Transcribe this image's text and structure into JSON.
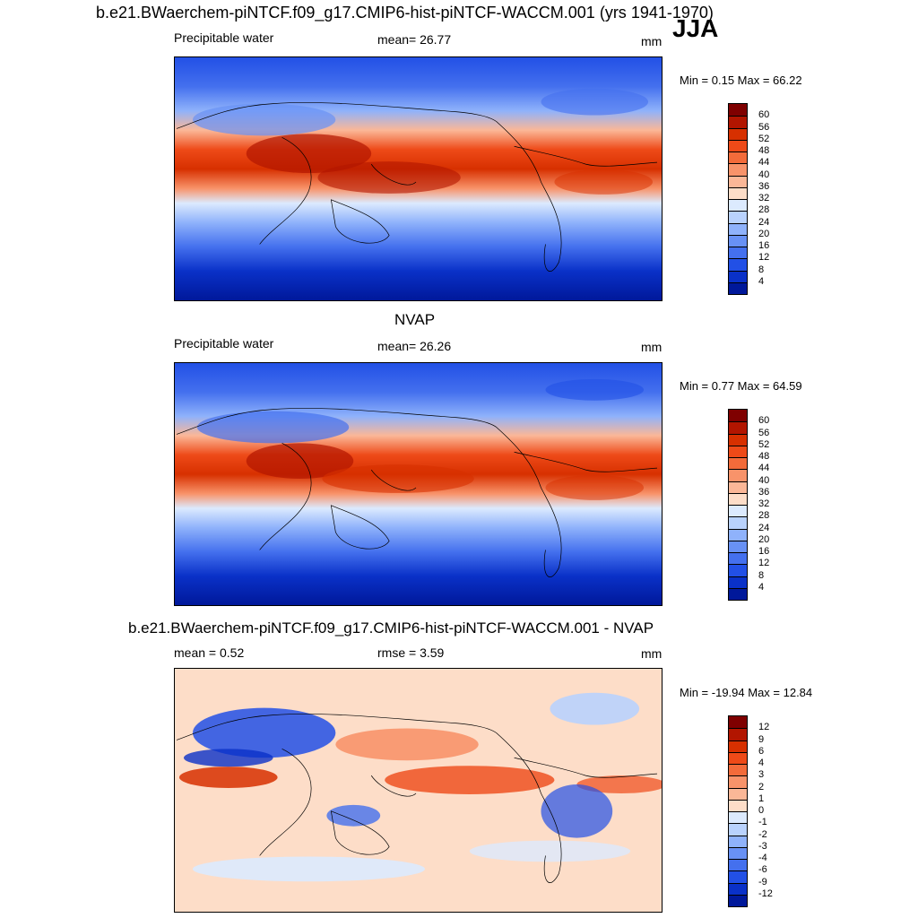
{
  "header": {
    "title": "b.e21.BWaerchem-piNTCF.f09_g17.CMIP6-hist-piNTCF-WACCM.001 (yrs 1941-1970)",
    "season": "JJA"
  },
  "panel1": {
    "left": "Precipitable water",
    "mean": "mean=  26.77",
    "units": "mm",
    "minmax": "Min =   0.15 Max =  66.22",
    "ticks": [
      "60",
      "56",
      "52",
      "48",
      "44",
      "40",
      "36",
      "32",
      "28",
      "24",
      "20",
      "16",
      "12",
      "8",
      "4"
    ]
  },
  "panel2": {
    "title": "NVAP",
    "left": "Precipitable water",
    "mean": "mean=  26.26",
    "units": "mm",
    "minmax": "Min =   0.77 Max =  64.59",
    "ticks": [
      "60",
      "56",
      "52",
      "48",
      "44",
      "40",
      "36",
      "32",
      "28",
      "24",
      "20",
      "16",
      "12",
      "8",
      "4"
    ]
  },
  "panel3": {
    "title": "b.e21.BWaerchem-piNTCF.f09_g17.CMIP6-hist-piNTCF-WACCM.001 - NVAP",
    "mean": "mean =   0.52",
    "rmse": "rmse =   3.59",
    "units": "mm",
    "minmax": "Min = -19.94 Max =  12.84",
    "ticks": [
      "12",
      "9",
      "6",
      "4",
      "3",
      "2",
      "1",
      "0",
      "-1",
      "-2",
      "-3",
      "-4",
      "-6",
      "-9",
      "-12"
    ]
  },
  "colors": {
    "abs_scale": [
      "#7f0000",
      "#b21500",
      "#d73000",
      "#ee4a18",
      "#f36b3a",
      "#f8936a",
      "#fbb797",
      "#fdddc8",
      "#dceafe",
      "#b9d2fd",
      "#8fb2fb",
      "#6891f5",
      "#4470ee",
      "#2250e6",
      "#0a31c8",
      "#00189a"
    ],
    "diff_scale": [
      "#7f0000",
      "#b21500",
      "#d73000",
      "#ee4a18",
      "#f36b3a",
      "#f8936a",
      "#fbb797",
      "#fdddc8",
      "#dceafe",
      "#b9d2fd",
      "#8fb2fb",
      "#6891f5",
      "#4470ee",
      "#2250e6",
      "#0a31c8",
      "#00189a"
    ]
  }
}
